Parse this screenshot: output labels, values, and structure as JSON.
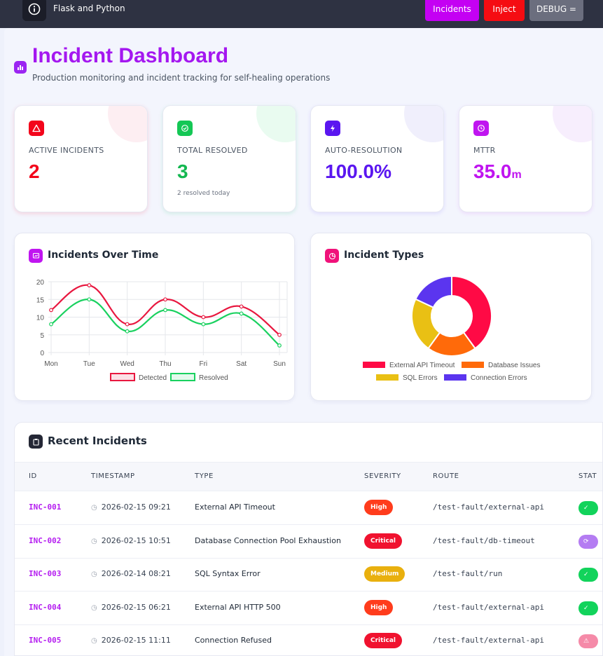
{
  "nav": {
    "brand": "Flask and Python",
    "incidents_label": "Incidents",
    "inject_label": "Inject",
    "debug_label": "DEBUG ="
  },
  "page": {
    "title": "Incident Dashboard",
    "subtitle": "Production monitoring and incident tracking for self-healing operations"
  },
  "stats": [
    {
      "label": "ACTIVE INCIDENTS",
      "value": "2",
      "note": "",
      "unit": "",
      "color": "#f3051b"
    },
    {
      "label": "TOTAL RESOLVED",
      "value": "3",
      "note": "2 resolved today",
      "unit": "",
      "color": "#14b851"
    },
    {
      "label": "AUTO-RESOLUTION",
      "value": "100.0%",
      "note": "",
      "unit": "",
      "color": "#5a16f0"
    },
    {
      "label": "MTTR",
      "value": "35.0",
      "note": "",
      "unit": "m",
      "color": "#c015f0"
    }
  ],
  "charts": {
    "line_title": "Incidents Over Time",
    "pie_title": "Incident Types"
  },
  "chart_data": [
    {
      "type": "line",
      "title": "Incidents Over Time",
      "categories": [
        "Mon",
        "Tue",
        "Wed",
        "Thu",
        "Fri",
        "Sat",
        "Sun"
      ],
      "ylim": [
        0,
        20
      ],
      "yticks": [
        0,
        5,
        10,
        15,
        20
      ],
      "grid": true,
      "legend": "bottom",
      "series": [
        {
          "name": "Detected",
          "values": [
            12,
            19,
            8,
            15,
            10,
            13,
            5
          ],
          "color": "#e8173f"
        },
        {
          "name": "Resolved",
          "values": [
            8,
            15,
            6,
            12,
            8,
            11,
            2
          ],
          "color": "#19d15f"
        }
      ]
    },
    {
      "type": "pie",
      "title": "Incident Types",
      "legend": "bottom",
      "labels": [
        "External API Timeout",
        "Database Issues",
        "SQL Errors",
        "Connection Errors"
      ],
      "values": [
        40,
        20,
        22,
        18
      ],
      "colors": [
        "#ff0a45",
        "#ff6a0a",
        "#e9c014",
        "#5b35ef"
      ]
    }
  ],
  "table": {
    "title": "Recent Incidents",
    "headers": [
      "ID",
      "TIMESTAMP",
      "TYPE",
      "SEVERITY",
      "ROUTE",
      "STAT"
    ],
    "rows": [
      {
        "id": "INC-001",
        "timestamp": "2026-02-15 09:21",
        "type": "External API Timeout",
        "severity": "High",
        "route": "/test-fault/external-api",
        "sev_color": "#ff3c1c",
        "status_color": "#12d35b",
        "status_icon": "✓"
      },
      {
        "id": "INC-002",
        "timestamp": "2026-02-15 10:51",
        "type": "Database Connection Pool Exhaustion",
        "severity": "Critical",
        "route": "/test-fault/db-timeout",
        "sev_color": "#f0122f",
        "status_color": "#b47cf2",
        "status_icon": "⟳"
      },
      {
        "id": "INC-003",
        "timestamp": "2026-02-14 08:21",
        "type": "SQL Syntax Error",
        "severity": "Medium",
        "route": "/test-fault/run",
        "sev_color": "#e9b00e",
        "status_color": "#12d35b",
        "status_icon": "✓"
      },
      {
        "id": "INC-004",
        "timestamp": "2026-02-15 06:21",
        "type": "External API HTTP 500",
        "severity": "High",
        "route": "/test-fault/external-api",
        "sev_color": "#ff3c1c",
        "status_color": "#12d35b",
        "status_icon": "✓"
      },
      {
        "id": "INC-005",
        "timestamp": "2026-02-15 11:11",
        "type": "Connection Refused",
        "severity": "Critical",
        "route": "/test-fault/external-api",
        "sev_color": "#f0122f",
        "status_color": "#f58aa8",
        "status_icon": "⚠"
      }
    ]
  }
}
